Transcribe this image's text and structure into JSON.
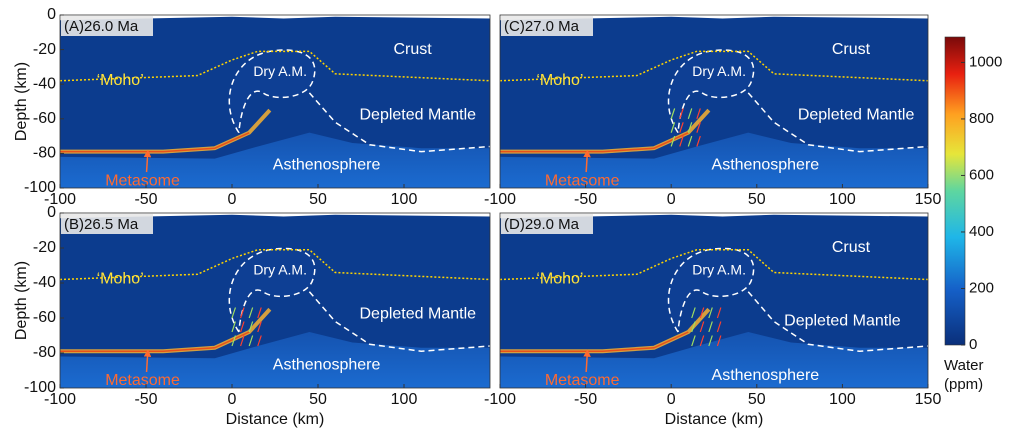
{
  "chart_data": [
    {
      "type": "field",
      "label": "(A)26.0 Ma",
      "ylabel": "Depth (km)",
      "xlim": [
        -100,
        150
      ],
      "ylim": [
        -100,
        0
      ],
      "xticks": [
        -100,
        -50,
        0,
        50,
        100
      ],
      "yticks": [
        0,
        -20,
        -40,
        -60,
        -80,
        -100
      ],
      "annotations": {
        "crust": "Crust",
        "moho": "‘Moho’",
        "dry": "Dry A.M.",
        "depleted": "Depleted Mantle",
        "astheno": "Asthenosphere",
        "metasome": "Metasome"
      }
    },
    {
      "type": "field",
      "label": "(C)27.0 Ma",
      "xlim": [
        -100,
        150
      ],
      "ylim": [
        -100,
        0
      ],
      "xticks": [
        -100,
        -50,
        0,
        50,
        100,
        150
      ],
      "annotations": {
        "crust": "Crust",
        "moho": "‘Moho’",
        "dry": "Dry A.M.",
        "depleted": "Depleted Mantle",
        "astheno": "Asthenosphere",
        "metasome": "Metasome"
      }
    },
    {
      "type": "field",
      "label": "(B)26.5 Ma",
      "ylabel": "Depth (km)",
      "xlabel": "Distance (km)",
      "xlim": [
        -100,
        150
      ],
      "ylim": [
        -100,
        0
      ],
      "xticks": [
        -100,
        -50,
        0,
        50,
        100
      ],
      "yticks": [
        0,
        -20,
        -40,
        -60,
        -80,
        -100
      ],
      "annotations": {
        "moho": "‘Moho’",
        "dry": "Dry A.M.",
        "depleted": "Depleted Mantle",
        "astheno": "Asthenosphere",
        "metasome": "Metasome"
      }
    },
    {
      "type": "field",
      "label": "(D)29.0 Ma",
      "xlabel": "Distance (km)",
      "xlim": [
        -100,
        150
      ],
      "ylim": [
        -100,
        0
      ],
      "xticks": [
        -100,
        -50,
        0,
        50,
        100,
        150
      ],
      "annotations": {
        "crust": "Crust",
        "moho": "‘Moho’",
        "dry": "Dry A.M.",
        "depleted": "Depleted Mantle",
        "astheno": "Asthenosphere",
        "metasome": "Metasome"
      }
    },
    {
      "type": "colorbar",
      "label_lines": [
        "Water",
        "(ppm)"
      ],
      "ylim": [
        0,
        1090
      ],
      "yticks": [
        0,
        200,
        400,
        600,
        800,
        1000
      ]
    }
  ]
}
